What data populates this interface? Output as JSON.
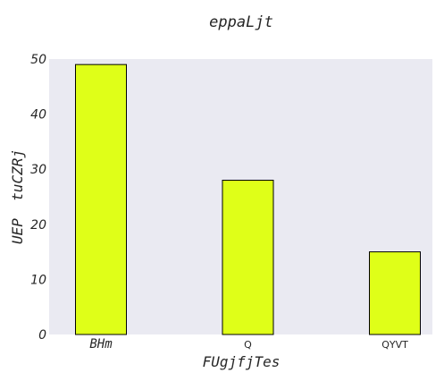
{
  "chart_data": {
    "type": "bar",
    "title": "eppaLjt",
    "xlabel": "FUgjfjTes",
    "ylabel": "UEP  tuCZRj",
    "categories": [
      "BHm",
      "Q",
      "QYVT"
    ],
    "values": [
      49,
      28,
      15
    ],
    "ylim": [
      0,
      50
    ],
    "yticks": [
      "0",
      "10",
      "20",
      "30",
      "40",
      "50"
    ],
    "grid": false,
    "bar_color": "#dfff18",
    "bar_edge_color": "#000000",
    "plot_background": "#eaeaf2"
  }
}
